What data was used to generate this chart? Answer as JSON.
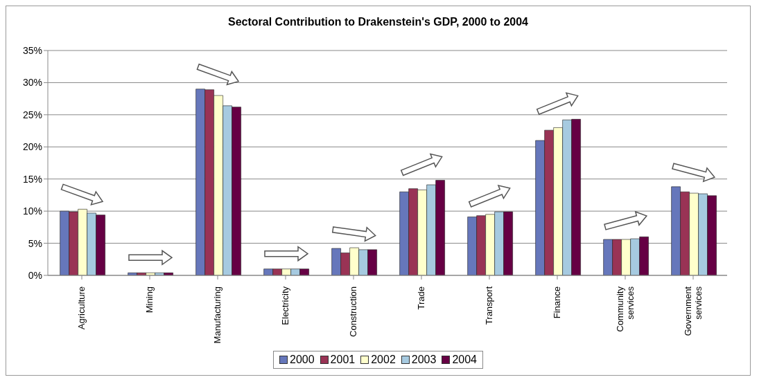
{
  "chart_data": {
    "type": "bar",
    "title": "Sectoral Contribution to Drakenstein's GDP, 2000 to 2004",
    "categories": [
      "Agriculture",
      "Mining",
      "Manufacturing",
      "Electricity",
      "Construction",
      "Trade",
      "Transport",
      "Finance",
      "Community services",
      "Government services"
    ],
    "series": [
      {
        "name": "2000",
        "color": "#6677bb",
        "values": [
          10,
          0.4,
          29,
          1,
          4.2,
          13,
          9.1,
          21,
          5.6,
          13.8
        ]
      },
      {
        "name": "2001",
        "color": "#993355",
        "values": [
          9.9,
          0.4,
          28.9,
          1,
          3.5,
          13.5,
          9.3,
          22.6,
          5.6,
          13
        ]
      },
      {
        "name": "2002",
        "color": "#ffffcc",
        "values": [
          10.3,
          0.4,
          28,
          1,
          4.3,
          13.3,
          9.5,
          23,
          5.6,
          12.8
        ]
      },
      {
        "name": "2003",
        "color": "#a6cae0",
        "values": [
          9.7,
          0.4,
          26.4,
          1,
          4,
          14.1,
          9.9,
          24.2,
          5.7,
          12.7
        ]
      },
      {
        "name": "2004",
        "color": "#660044",
        "values": [
          9.4,
          0.4,
          26.2,
          1,
          4,
          14.8,
          9.9,
          24.3,
          6,
          12.4
        ]
      }
    ],
    "ylim": [
      0,
      35
    ],
    "yticks": [
      {
        "value": 0,
        "label": "0%"
      },
      {
        "value": 5,
        "label": "5%"
      },
      {
        "value": 10,
        "label": "10%"
      },
      {
        "value": 15,
        "label": "15%"
      },
      {
        "value": 20,
        "label": "20%"
      },
      {
        "value": 25,
        "label": "25%"
      },
      {
        "value": 30,
        "label": "30%"
      },
      {
        "value": 35,
        "label": "35%"
      }
    ],
    "grid": "y",
    "legend": "bottom"
  }
}
